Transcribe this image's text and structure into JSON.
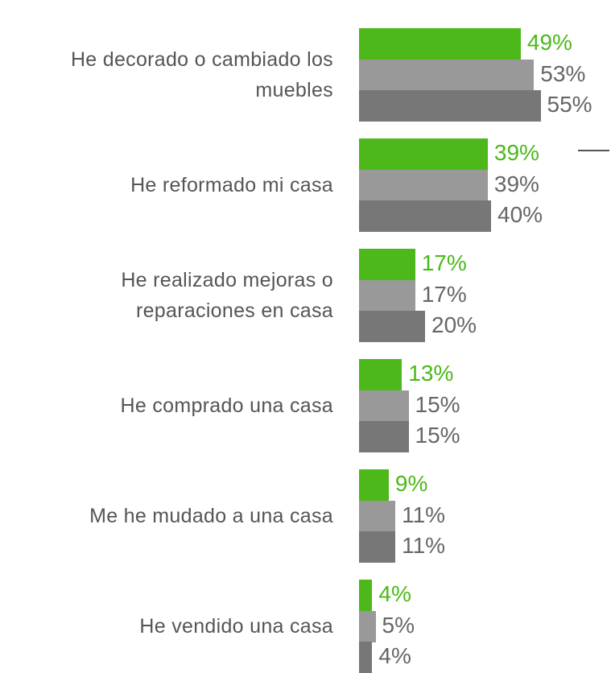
{
  "chart_data": {
    "type": "bar",
    "orientation": "horizontal",
    "categories": [
      "He decorado o cambiado los muebles",
      "He reformado mi casa",
      "He realizado mejoras o reparaciones en casa",
      "He comprado una casa",
      "Me he mudado a una casa",
      "He vendido una casa"
    ],
    "series": [
      {
        "color": "#4cb81a",
        "values": [
          49,
          39,
          17,
          13,
          9,
          4
        ],
        "value_labels": [
          "49%",
          "39%",
          "17%",
          "13%",
          "9%",
          "4%"
        ]
      },
      {
        "color": "#999999",
        "values": [
          53,
          39,
          17,
          15,
          11,
          5
        ],
        "value_labels": [
          "53%",
          "39%",
          "17%",
          "15%",
          "11%",
          "5%"
        ]
      },
      {
        "color": "#777777",
        "values": [
          55,
          40,
          20,
          15,
          11,
          4
        ],
        "value_labels": [
          "55%",
          "40%",
          "20%",
          "15%",
          "11%",
          "4%"
        ]
      }
    ]
  }
}
